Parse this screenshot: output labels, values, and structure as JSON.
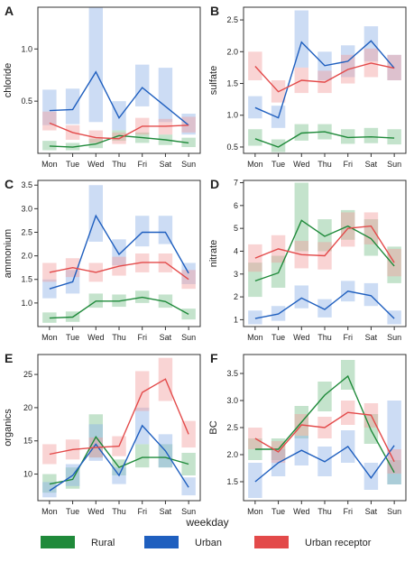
{
  "figure": {
    "xlabel": "weekday",
    "legend": [
      {
        "name": "Rural",
        "color": "#1f8a3a",
        "band_color": "#7cc08d"
      },
      {
        "name": "Urban",
        "color": "#1f5fbf",
        "band_color": "#8eb2e6"
      },
      {
        "name": "Urban receptor",
        "color": "#e34a4a",
        "band_color": "#f2a0a0"
      }
    ]
  },
  "chart_data": [
    {
      "panel": "A",
      "type": "line",
      "ylabel": "chloride",
      "categories": [
        "Mon",
        "Tue",
        "Wed",
        "Thu",
        "Fri",
        "Sat",
        "Sun"
      ],
      "ylim": [
        0,
        1.4
      ],
      "yticks": [
        0.5,
        1.0
      ],
      "ytick_labels": [
        "0.5",
        "1.0"
      ],
      "series": [
        {
          "name": "Rural",
          "values": [
            0.07,
            0.06,
            0.09,
            0.17,
            0.15,
            0.13,
            0.1
          ],
          "lo": [
            0.03,
            0.03,
            0.05,
            0.12,
            0.1,
            0.08,
            0.06
          ],
          "hi": [
            0.12,
            0.1,
            0.14,
            0.22,
            0.2,
            0.18,
            0.15
          ]
        },
        {
          "name": "Urban",
          "values": [
            0.41,
            0.42,
            0.78,
            0.34,
            0.63,
            0.45,
            0.27
          ],
          "lo": [
            0.27,
            0.28,
            0.3,
            0.22,
            0.45,
            0.3,
            0.18
          ],
          "hi": [
            0.61,
            0.62,
            1.4,
            0.5,
            0.85,
            0.82,
            0.38
          ]
        },
        {
          "name": "Urban receptor",
          "values": [
            0.29,
            0.2,
            0.15,
            0.14,
            0.26,
            0.26,
            0.27
          ],
          "lo": [
            0.22,
            0.13,
            0.1,
            0.09,
            0.18,
            0.18,
            0.2
          ],
          "hi": [
            0.4,
            0.27,
            0.22,
            0.2,
            0.34,
            0.33,
            0.35
          ]
        }
      ]
    },
    {
      "panel": "B",
      "type": "line",
      "ylabel": "sulfate",
      "categories": [
        "Mon",
        "Tue",
        "Wed",
        "Thu",
        "Fri",
        "Sat",
        "Sun"
      ],
      "ylim": [
        0.4,
        2.7
      ],
      "yticks": [
        0.5,
        1.0,
        1.5,
        2.0,
        2.5
      ],
      "ytick_labels": [
        "0.5",
        "1.0",
        "1.5",
        "2.0",
        "2.5"
      ],
      "series": [
        {
          "name": "Rural",
          "values": [
            0.63,
            0.5,
            0.72,
            0.74,
            0.65,
            0.66,
            0.64
          ],
          "lo": [
            0.52,
            0.42,
            0.6,
            0.62,
            0.55,
            0.56,
            0.54
          ],
          "hi": [
            0.78,
            0.62,
            0.86,
            0.86,
            0.78,
            0.8,
            0.78
          ]
        },
        {
          "name": "Urban",
          "values": [
            1.12,
            0.96,
            2.15,
            1.78,
            1.85,
            2.17,
            1.74
          ],
          "lo": [
            0.95,
            0.8,
            1.75,
            1.55,
            1.6,
            1.85,
            1.55
          ],
          "hi": [
            1.3,
            1.15,
            2.65,
            2.0,
            2.1,
            2.4,
            1.95
          ]
        },
        {
          "name": "Urban receptor",
          "values": [
            1.77,
            1.37,
            1.55,
            1.52,
            1.72,
            1.82,
            1.74
          ],
          "lo": [
            1.55,
            1.2,
            1.35,
            1.35,
            1.5,
            1.6,
            1.55
          ],
          "hi": [
            2.0,
            1.55,
            1.75,
            1.7,
            1.95,
            2.05,
            1.95
          ]
        }
      ]
    },
    {
      "panel": "C",
      "type": "line",
      "ylabel": "ammonium",
      "categories": [
        "Mon",
        "Tue",
        "Wed",
        "Thu",
        "Fri",
        "Sat",
        "Sun"
      ],
      "ylim": [
        0.5,
        3.6
      ],
      "yticks": [
        1.0,
        1.5,
        2.0,
        2.5,
        3.0,
        3.5
      ],
      "ytick_labels": [
        "1.0",
        "1.5",
        "2.0",
        "2.5",
        "3.0",
        "3.5"
      ],
      "series": [
        {
          "name": "Rural",
          "values": [
            0.68,
            0.7,
            1.04,
            1.04,
            1.12,
            1.03,
            0.76
          ],
          "lo": [
            0.58,
            0.6,
            0.9,
            0.92,
            1.0,
            0.9,
            0.65
          ],
          "hi": [
            0.8,
            0.82,
            1.2,
            1.18,
            1.26,
            1.18,
            0.88
          ]
        },
        {
          "name": "Urban",
          "values": [
            1.3,
            1.45,
            2.85,
            2.03,
            2.5,
            2.5,
            1.63
          ],
          "lo": [
            1.1,
            1.2,
            2.3,
            1.8,
            2.2,
            2.25,
            1.4
          ],
          "hi": [
            1.5,
            1.7,
            3.5,
            2.35,
            2.85,
            2.85,
            1.85
          ]
        },
        {
          "name": "Urban receptor",
          "values": [
            1.65,
            1.75,
            1.65,
            1.78,
            1.86,
            1.86,
            1.5
          ],
          "lo": [
            1.45,
            1.55,
            1.45,
            1.58,
            1.65,
            1.65,
            1.3
          ],
          "hi": [
            1.85,
            1.95,
            1.85,
            1.98,
            2.05,
            2.05,
            1.7
          ]
        }
      ]
    },
    {
      "panel": "D",
      "type": "line",
      "ylabel": "nitrate",
      "categories": [
        "Mon",
        "Tue",
        "Wed",
        "Thu",
        "Fri",
        "Sat",
        "Sun"
      ],
      "ylim": [
        0.7,
        7.1
      ],
      "yticks": [
        1,
        2,
        3,
        4,
        5,
        6,
        7
      ],
      "ytick_labels": [
        "1",
        "2",
        "3",
        "4",
        "5",
        "6",
        "7"
      ],
      "series": [
        {
          "name": "Rural",
          "values": [
            2.7,
            3.05,
            5.35,
            4.65,
            5.1,
            4.55,
            3.35
          ],
          "lo": [
            2.0,
            2.4,
            4.0,
            4.0,
            4.5,
            3.8,
            2.6
          ],
          "hi": [
            3.5,
            3.8,
            7.0,
            5.4,
            5.8,
            5.4,
            4.2
          ]
        },
        {
          "name": "Urban",
          "values": [
            1.05,
            1.25,
            1.95,
            1.45,
            2.25,
            2.05,
            1.05
          ],
          "lo": [
            0.8,
            0.95,
            1.5,
            1.1,
            1.8,
            1.6,
            0.8
          ],
          "hi": [
            1.4,
            1.6,
            2.5,
            1.9,
            2.7,
            2.6,
            1.4
          ]
        },
        {
          "name": "Urban receptor",
          "values": [
            3.7,
            4.1,
            3.85,
            3.8,
            5.0,
            5.1,
            3.5
          ],
          "lo": [
            3.1,
            3.5,
            3.25,
            3.2,
            4.2,
            4.3,
            2.9
          ],
          "hi": [
            4.3,
            4.7,
            4.45,
            4.4,
            5.7,
            5.7,
            4.1
          ]
        }
      ]
    },
    {
      "panel": "E",
      "type": "line",
      "ylabel": "organics",
      "categories": [
        "Mon",
        "Tue",
        "Wed",
        "Thu",
        "Fri",
        "Sat",
        "Sun"
      ],
      "ylim": [
        6,
        28
      ],
      "yticks": [
        10,
        15,
        20,
        25
      ],
      "ytick_labels": [
        "10",
        "15",
        "20",
        "25"
      ],
      "series": [
        {
          "name": "Rural",
          "values": [
            8.5,
            9.2,
            15.6,
            11.0,
            12.5,
            12.5,
            11.5
          ],
          "lo": [
            7.2,
            7.8,
            12.5,
            9.8,
            11.0,
            11.0,
            9.8
          ],
          "hi": [
            10.0,
            11.0,
            19.0,
            12.2,
            14.5,
            14.5,
            13.2
          ]
        },
        {
          "name": "Urban",
          "values": [
            7.5,
            9.8,
            14.5,
            9.8,
            17.3,
            13.5,
            8.0
          ],
          "lo": [
            6.5,
            8.2,
            12.0,
            8.5,
            14.5,
            11.0,
            6.8
          ],
          "hi": [
            8.8,
            11.5,
            17.5,
            11.0,
            20.0,
            16.0,
            9.5
          ]
        },
        {
          "name": "Urban receptor",
          "values": [
            13.0,
            13.7,
            14.0,
            14.2,
            22.3,
            24.3,
            16.0
          ],
          "lo": [
            11.5,
            12.2,
            12.5,
            12.7,
            19.5,
            21.0,
            14.0
          ],
          "hi": [
            14.5,
            15.2,
            15.5,
            15.7,
            25.5,
            27.5,
            18.0
          ]
        }
      ]
    },
    {
      "panel": "F",
      "type": "line",
      "ylabel": "BC",
      "categories": [
        "Mon",
        "Tue",
        "Wed",
        "Thu",
        "Fri",
        "Sat",
        "Sun"
      ],
      "ylim": [
        1.15,
        3.85
      ],
      "yticks": [
        1.5,
        2.0,
        2.5,
        3.0,
        3.5
      ],
      "ytick_labels": [
        "1.5",
        "2.0",
        "2.5",
        "3.0",
        "3.5"
      ],
      "series": [
        {
          "name": "Rural",
          "values": [
            2.1,
            2.1,
            2.6,
            3.1,
            3.45,
            2.45,
            1.67
          ],
          "lo": [
            1.9,
            1.9,
            2.3,
            2.8,
            3.2,
            2.2,
            1.45
          ],
          "hi": [
            2.3,
            2.3,
            2.9,
            3.35,
            3.75,
            2.75,
            1.9
          ]
        },
        {
          "name": "Urban",
          "values": [
            1.5,
            1.85,
            2.08,
            1.87,
            2.15,
            1.57,
            2.17
          ],
          "lo": [
            1.2,
            1.6,
            1.8,
            1.6,
            1.85,
            1.35,
            1.45
          ],
          "hi": [
            1.85,
            2.1,
            2.35,
            2.15,
            2.45,
            1.85,
            3.0
          ]
        },
        {
          "name": "Urban receptor",
          "values": [
            2.3,
            2.05,
            2.55,
            2.5,
            2.78,
            2.73,
            1.87
          ],
          "lo": [
            2.1,
            1.85,
            2.35,
            2.3,
            2.55,
            2.5,
            1.65
          ],
          "hi": [
            2.5,
            2.25,
            2.75,
            2.7,
            3.0,
            2.95,
            2.1
          ]
        }
      ]
    }
  ]
}
